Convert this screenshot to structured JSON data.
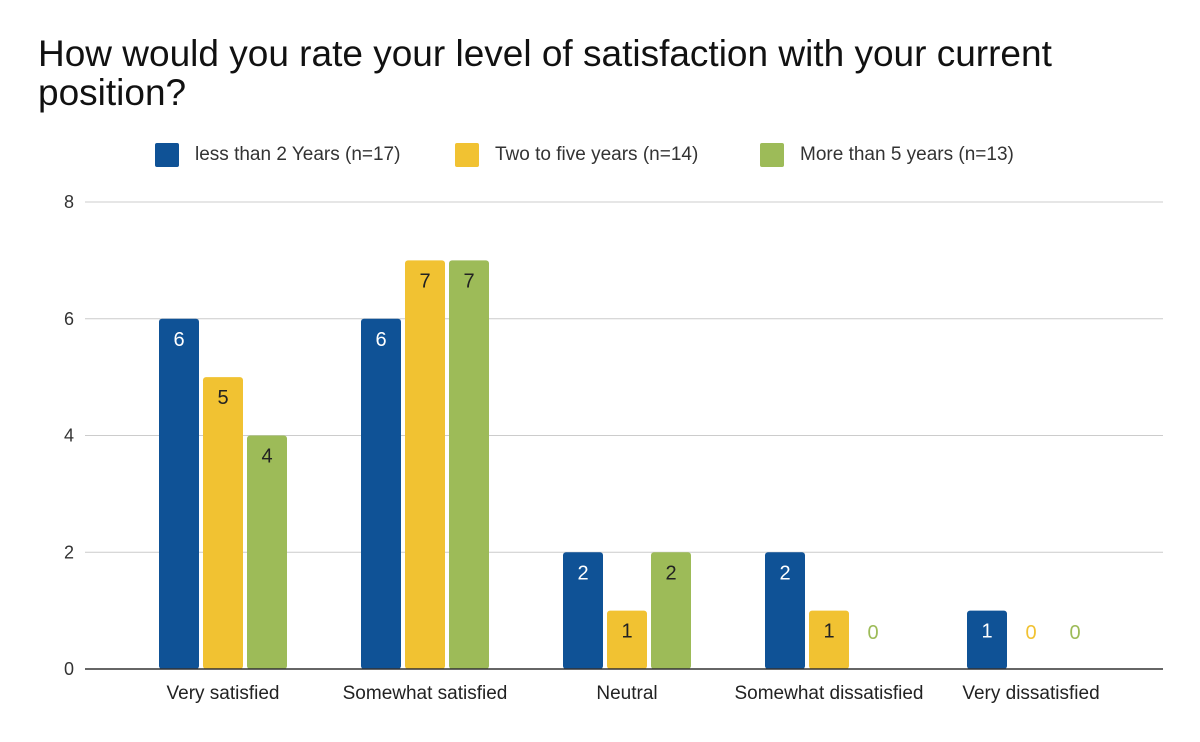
{
  "chart_data": {
    "type": "bar",
    "title": "How would you rate your level of satisfaction with your current position?",
    "categories": [
      "Very satisfied",
      "Somewhat satisfied",
      "Neutral",
      "Somewhat dissatisfied",
      "Very dissatisfied"
    ],
    "series": [
      {
        "name": "less than 2 Years (n=17)",
        "color": "#0f5296",
        "values": [
          6,
          6,
          2,
          2,
          1
        ]
      },
      {
        "name": "Two to five years (n=14)",
        "color": "#f1c232",
        "values": [
          5,
          7,
          1,
          1,
          0
        ]
      },
      {
        "name": "More than 5 years (n=13)",
        "color": "#9dbb58",
        "values": [
          4,
          7,
          2,
          0,
          0
        ]
      }
    ],
    "ylim": [
      0,
      8
    ],
    "yticks": [
      0,
      2,
      4,
      6,
      8
    ],
    "xlabel": "",
    "ylabel": "",
    "grid": true,
    "legend_position": "top"
  }
}
